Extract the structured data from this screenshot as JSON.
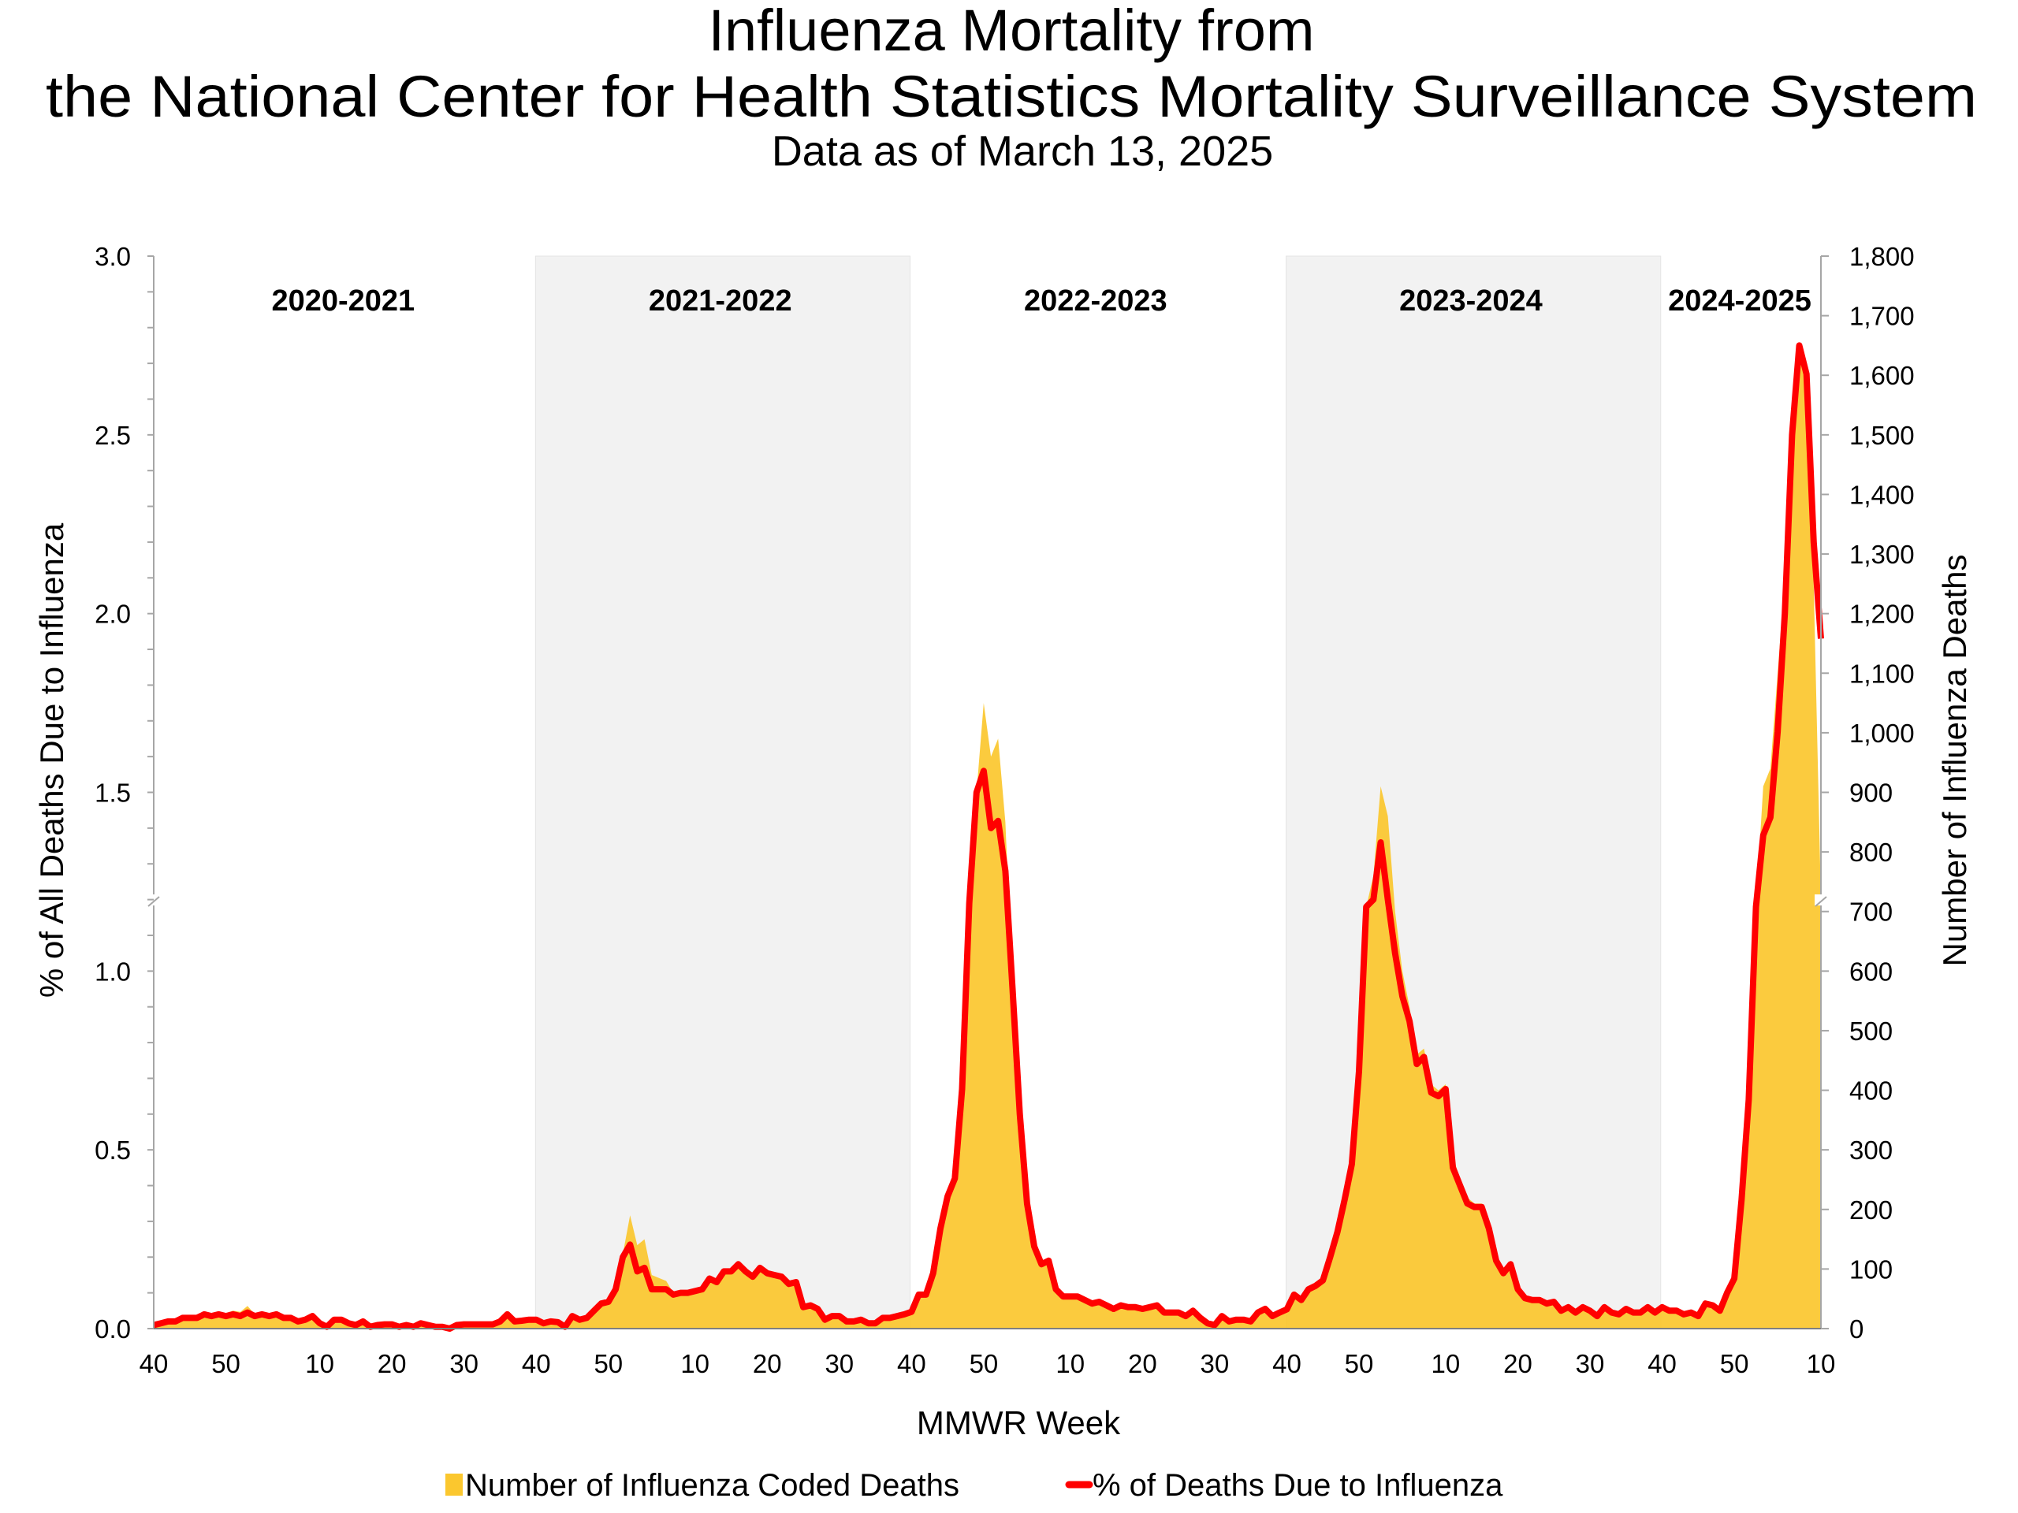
{
  "chart_data": {
    "type": "area+line",
    "title": "Influenza Mortality from",
    "title_line2": "the National Center for Health Statistics Mortality Surveillance System",
    "subtitle": "Data as of March 13, 2025",
    "xlabel": "MMWR Week",
    "ylabel_left": "% of All Deaths Due to Influenza",
    "ylabel_right": "Number of Influenza Deaths",
    "ylim_left": [
      0,
      3.0
    ],
    "ylim_right": [
      0,
      1800
    ],
    "yticks_left": [
      "0.0",
      "0.5",
      "1.0",
      "1.5",
      "2.0",
      "2.5",
      "3.0"
    ],
    "yticks_right": [
      "0",
      "100",
      "200",
      "300",
      "400",
      "500",
      "600",
      "700",
      "800",
      "900",
      "1,000",
      "1,100",
      "1,200",
      "1,300",
      "1,400",
      "1,500",
      "1,600",
      "1,700",
      "1,800"
    ],
    "axis_break": true,
    "grid": false,
    "legend_position": "bottom",
    "series": [
      {
        "name": "Number of Influenza Coded Deaths",
        "type": "area",
        "axis": "right",
        "color": "#FBC72E"
      },
      {
        "name": "% of Deaths Due to Influenza",
        "type": "line",
        "axis": "left",
        "color": "#FF0000"
      }
    ],
    "seasons": [
      {
        "label": "2020-2021",
        "shaded": false,
        "weeks": [
          40,
          41,
          42,
          43,
          44,
          45,
          46,
          47,
          48,
          49,
          50,
          51,
          52,
          53,
          1,
          2,
          3,
          4,
          5,
          6,
          7,
          8,
          9,
          10,
          11,
          12,
          13,
          14,
          15,
          16,
          17,
          18,
          19,
          20,
          21,
          22,
          23,
          24,
          25,
          26,
          27,
          28,
          29,
          30,
          31,
          32,
          33,
          34,
          35,
          36,
          37,
          38,
          39
        ],
        "pct": [
          0.01,
          0.015,
          0.02,
          0.02,
          0.03,
          0.03,
          0.03,
          0.04,
          0.035,
          0.04,
          0.035,
          0.04,
          0.035,
          0.045,
          0.035,
          0.04,
          0.035,
          0.04,
          0.03,
          0.03,
          0.02,
          0.025,
          0.035,
          0.015,
          0.005,
          0.025,
          0.025,
          0.015,
          0.01,
          0.02,
          0.005,
          0.01,
          0.012,
          0.012,
          0.005,
          0.01,
          0.005,
          0.015,
          0.01,
          0.005,
          0.005,
          0.0,
          0.01,
          0.012,
          0.012,
          0.012,
          0.012,
          0.012,
          0.02,
          0.04,
          0.02,
          0.022,
          0.025
        ],
        "deaths": [
          6,
          9,
          12,
          12,
          18,
          18,
          20,
          26,
          24,
          28,
          26,
          30,
          28,
          38,
          24,
          26,
          22,
          24,
          18,
          18,
          12,
          15,
          20,
          9,
          4,
          15,
          15,
          9,
          6,
          12,
          4,
          6,
          7,
          7,
          4,
          6,
          4,
          9,
          6,
          4,
          4,
          2,
          6,
          7,
          7,
          7,
          7,
          7,
          12,
          24,
          12,
          13,
          15
        ]
      },
      {
        "label": "2021-2022",
        "shaded": true,
        "weeks": [
          40,
          41,
          42,
          43,
          44,
          45,
          46,
          47,
          48,
          49,
          50,
          51,
          52,
          1,
          2,
          3,
          4,
          5,
          6,
          7,
          8,
          9,
          10,
          11,
          12,
          13,
          14,
          15,
          16,
          17,
          18,
          19,
          20,
          21,
          22,
          23,
          24,
          25,
          26,
          27,
          28,
          29,
          30,
          31,
          32,
          33,
          34,
          35,
          36,
          37,
          38,
          39
        ],
        "pct": [
          0.025,
          0.015,
          0.02,
          0.018,
          0.005,
          0.035,
          0.025,
          0.03,
          0.05,
          0.07,
          0.075,
          0.11,
          0.2,
          0.235,
          0.16,
          0.17,
          0.11,
          0.11,
          0.11,
          0.095,
          0.1,
          0.1,
          0.105,
          0.11,
          0.14,
          0.13,
          0.16,
          0.16,
          0.18,
          0.16,
          0.145,
          0.17,
          0.155,
          0.15,
          0.145,
          0.125,
          0.13,
          0.06,
          0.065,
          0.055,
          0.025,
          0.035,
          0.035,
          0.02,
          0.02,
          0.025,
          0.015,
          0.015,
          0.03,
          0.03,
          0.035,
          0.04
        ],
        "deaths": [
          15,
          9,
          12,
          11,
          3,
          21,
          15,
          18,
          30,
          45,
          48,
          70,
          125,
          190,
          140,
          150,
          90,
          85,
          80,
          60,
          60,
          60,
          63,
          66,
          84,
          78,
          96,
          96,
          108,
          96,
          87,
          102,
          93,
          90,
          87,
          75,
          78,
          36,
          39,
          33,
          15,
          21,
          21,
          12,
          12,
          15,
          9,
          9,
          18,
          18,
          21,
          24
        ]
      },
      {
        "label": "2022-2023",
        "shaded": false,
        "weeks": [
          40,
          41,
          42,
          43,
          44,
          45,
          46,
          47,
          48,
          49,
          50,
          51,
          52,
          1,
          2,
          3,
          4,
          5,
          6,
          7,
          8,
          9,
          10,
          11,
          12,
          13,
          14,
          15,
          16,
          17,
          18,
          19,
          20,
          21,
          22,
          23,
          24,
          25,
          26,
          27,
          28,
          29,
          30,
          31,
          32,
          33,
          34,
          35,
          36,
          37,
          38,
          39
        ],
        "pct": [
          0.047,
          0.095,
          0.095,
          0.155,
          0.28,
          0.37,
          0.42,
          0.67,
          1.19,
          1.5,
          1.56,
          1.4,
          1.42,
          1.28,
          0.95,
          0.6,
          0.35,
          0.23,
          0.18,
          0.19,
          0.11,
          0.09,
          0.09,
          0.09,
          0.08,
          0.07,
          0.075,
          0.065,
          0.055,
          0.065,
          0.06,
          0.06,
          0.055,
          0.06,
          0.065,
          0.045,
          0.045,
          0.045,
          0.035,
          0.05,
          0.03,
          0.015,
          0.01,
          0.035,
          0.02,
          0.025,
          0.025,
          0.02,
          0.045,
          0.055,
          0.035,
          0.045
        ],
        "deaths": [
          28,
          57,
          57,
          93,
          168,
          222,
          252,
          402,
          714,
          900,
          1050,
          960,
          990,
          850,
          570,
          360,
          210,
          138,
          108,
          114,
          66,
          54,
          54,
          54,
          48,
          42,
          45,
          39,
          33,
          39,
          36,
          36,
          33,
          36,
          39,
          27,
          27,
          27,
          21,
          30,
          18,
          9,
          6,
          21,
          12,
          15,
          15,
          12,
          27,
          33,
          21,
          27
        ]
      },
      {
        "label": "2023-2024",
        "shaded": true,
        "weeks": [
          40,
          41,
          42,
          43,
          44,
          45,
          46,
          47,
          48,
          49,
          50,
          51,
          52,
          1,
          2,
          3,
          4,
          5,
          6,
          7,
          8,
          9,
          10,
          11,
          12,
          13,
          14,
          15,
          16,
          17,
          18,
          19,
          20,
          21,
          22,
          23,
          24,
          25,
          26,
          27,
          28,
          29,
          30,
          31,
          32,
          33,
          34,
          35,
          36,
          37,
          38,
          39
        ],
        "pct": [
          0.054,
          0.095,
          0.08,
          0.11,
          0.12,
          0.135,
          0.2,
          0.27,
          0.36,
          0.46,
          0.72,
          1.18,
          1.2,
          1.36,
          1.2,
          1.05,
          0.93,
          0.86,
          0.74,
          0.76,
          0.66,
          0.65,
          0.67,
          0.45,
          0.4,
          0.35,
          0.34,
          0.34,
          0.28,
          0.19,
          0.155,
          0.18,
          0.11,
          0.085,
          0.08,
          0.08,
          0.07,
          0.075,
          0.05,
          0.06,
          0.045,
          0.06,
          0.05,
          0.035,
          0.06,
          0.045,
          0.04,
          0.055,
          0.045,
          0.045,
          0.06,
          0.045
        ],
        "deaths": [
          32,
          57,
          48,
          66,
          72,
          81,
          120,
          162,
          216,
          276,
          432,
          708,
          760,
          910,
          860,
          700,
          600,
          540,
          460,
          470,
          410,
          400,
          410,
          290,
          250,
          220,
          210,
          210,
          170,
          114,
          93,
          108,
          66,
          51,
          48,
          48,
          42,
          45,
          30,
          36,
          27,
          36,
          30,
          21,
          36,
          27,
          24,
          33,
          27,
          27,
          36,
          27
        ]
      },
      {
        "label": "2024-2025",
        "shaded": false,
        "weeks": [
          40,
          41,
          42,
          43,
          44,
          45,
          46,
          47,
          48,
          49,
          50,
          51,
          52,
          1,
          2,
          3,
          4,
          5,
          6,
          7,
          8,
          9,
          10
        ],
        "pct": [
          0.06,
          0.05,
          0.05,
          0.04,
          0.045,
          0.035,
          0.07,
          0.065,
          0.05,
          0.1,
          0.14,
          0.36,
          0.64,
          1.18,
          1.38,
          1.43,
          1.67,
          2.0,
          2.5,
          2.75,
          2.67,
          2.2,
          1.93
        ],
        "deaths": [
          36,
          30,
          30,
          24,
          27,
          21,
          42,
          39,
          30,
          60,
          84,
          216,
          384,
          710,
          910,
          940,
          1100,
          1260,
          1500,
          1640,
          1600,
          1250,
          720
        ]
      }
    ]
  }
}
